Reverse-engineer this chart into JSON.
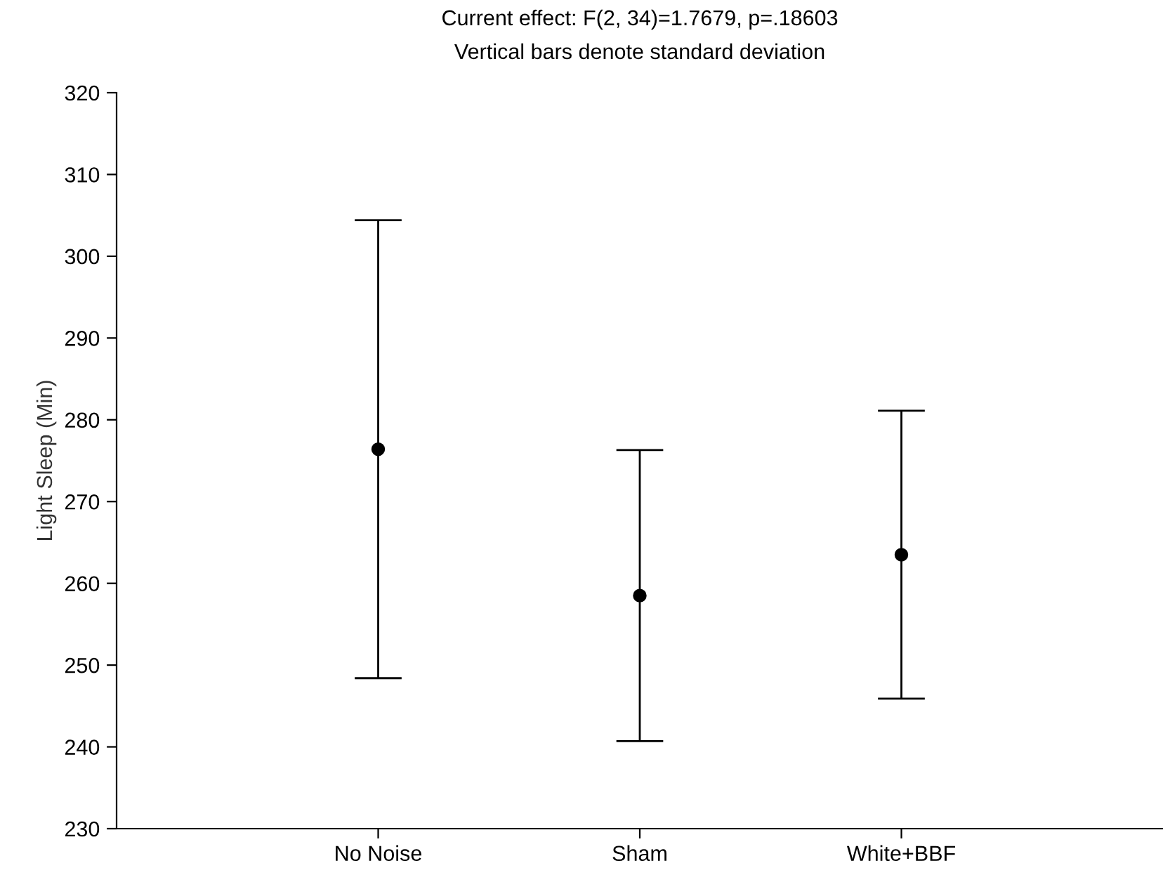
{
  "chart_data": {
    "type": "scatter",
    "title": "Current effect: F(2, 34)=1.7679, p=.18603",
    "subtitle": "Vertical bars denote standard deviation",
    "ylabel": "Light Sleep (Min)",
    "categories": [
      "No Noise",
      "Sham",
      "White+BBF"
    ],
    "values": [
      276.4,
      258.5,
      263.5
    ],
    "errors": [
      28,
      17.8,
      17.6
    ],
    "color": "#000000",
    "marker": "circle",
    "grid": false,
    "legend": false,
    "ylim": [
      230,
      320
    ],
    "yticks": [
      230,
      240,
      250,
      260,
      270,
      280,
      290,
      300,
      310,
      320
    ]
  }
}
